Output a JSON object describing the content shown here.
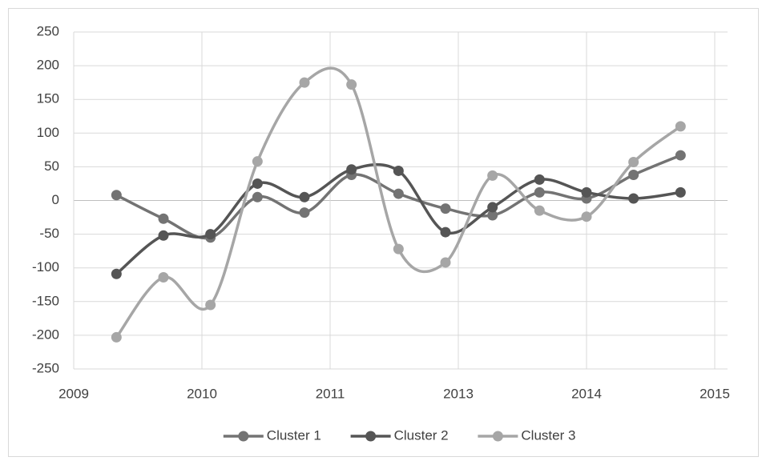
{
  "chart_data": {
    "type": "line",
    "x": [
      2009.4,
      2009.84,
      2010.28,
      2010.72,
      2011.16,
      2011.6,
      2012.04,
      2012.48,
      2012.92,
      2013.36,
      2013.8,
      2014.24,
      2014.68
    ],
    "series": [
      {
        "name": "Cluster 1",
        "color": "#737373",
        "values": [
          8,
          -27,
          -55,
          5,
          -18,
          38,
          10,
          -12,
          -22,
          12,
          3,
          38,
          67
        ]
      },
      {
        "name": "Cluster 2",
        "color": "#555555",
        "values": [
          -109,
          -52,
          -50,
          25,
          5,
          46,
          44,
          -47,
          -10,
          31,
          12,
          3,
          12
        ]
      },
      {
        "name": "Cluster 3",
        "color": "#a6a6a6",
        "values": [
          -203,
          -114,
          -155,
          58,
          175,
          172,
          -72,
          -92,
          37,
          -15,
          -24,
          57,
          110
        ]
      }
    ],
    "xlim": [
      2009,
      2015
    ],
    "xticks": [
      2009,
      {
        "value": 2010.2,
        "label": "2010"
      },
      {
        "value": 2011.4,
        "label": "2011"
      },
      {
        "value": 2012.6,
        "label": "2013"
      },
      {
        "value": 2013.8,
        "label": "2014"
      },
      2015
    ],
    "ylim": [
      -250,
      250
    ],
    "yticks": [
      -250,
      -200,
      -150,
      -100,
      -50,
      0,
      50,
      100,
      150,
      200,
      250
    ],
    "grid": true,
    "legend": "bottom",
    "smooth": true
  }
}
